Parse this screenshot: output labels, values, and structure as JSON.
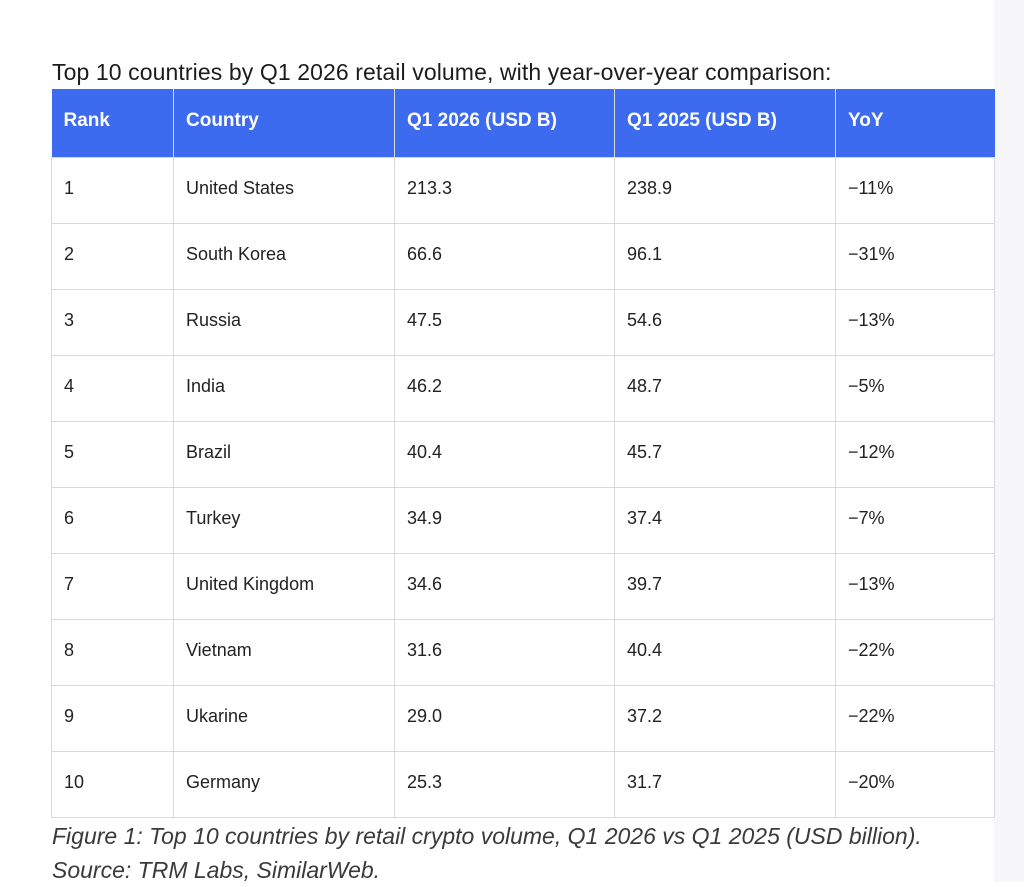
{
  "intro_text": "Top 10 countries by Q1 2026 retail volume, with year-over-year comparison:",
  "table": {
    "headers": [
      "Rank",
      "Country",
      "Q1 2026 (USD B)",
      "Q1 2025 (USD B)",
      "YoY"
    ],
    "rows": [
      [
        "1",
        "United States",
        "213.3",
        "238.9",
        "−11%"
      ],
      [
        "2",
        "South Korea",
        "66.6",
        "96.1",
        "−31%"
      ],
      [
        "3",
        "Russia",
        "47.5",
        "54.6",
        "−13%"
      ],
      [
        "4",
        "India",
        "46.2",
        "48.7",
        "−5%"
      ],
      [
        "5",
        "Brazil",
        "40.4",
        "45.7",
        "−12%"
      ],
      [
        "6",
        "Turkey",
        "34.9",
        "37.4",
        "−7%"
      ],
      [
        "7",
        "United Kingdom",
        "34.6",
        "39.7",
        "−13%"
      ],
      [
        "8",
        "Vietnam",
        "31.6",
        "40.4",
        "−22%"
      ],
      [
        "9",
        "Ukarine",
        "29.0",
        "37.2",
        "−22%"
      ],
      [
        "10",
        "Germany",
        "25.3",
        "31.7",
        "−20%"
      ]
    ]
  },
  "caption": "Figure 1: Top 10 countries by retail crypto volume, Q1 2026 vs Q1 2025 (USD billion). Source: TRM Labs, SimilarWeb.",
  "colors": {
    "header_background": "#3d6bf0",
    "header_text": "#ffffff",
    "grid_border": "#d9d9d9"
  }
}
